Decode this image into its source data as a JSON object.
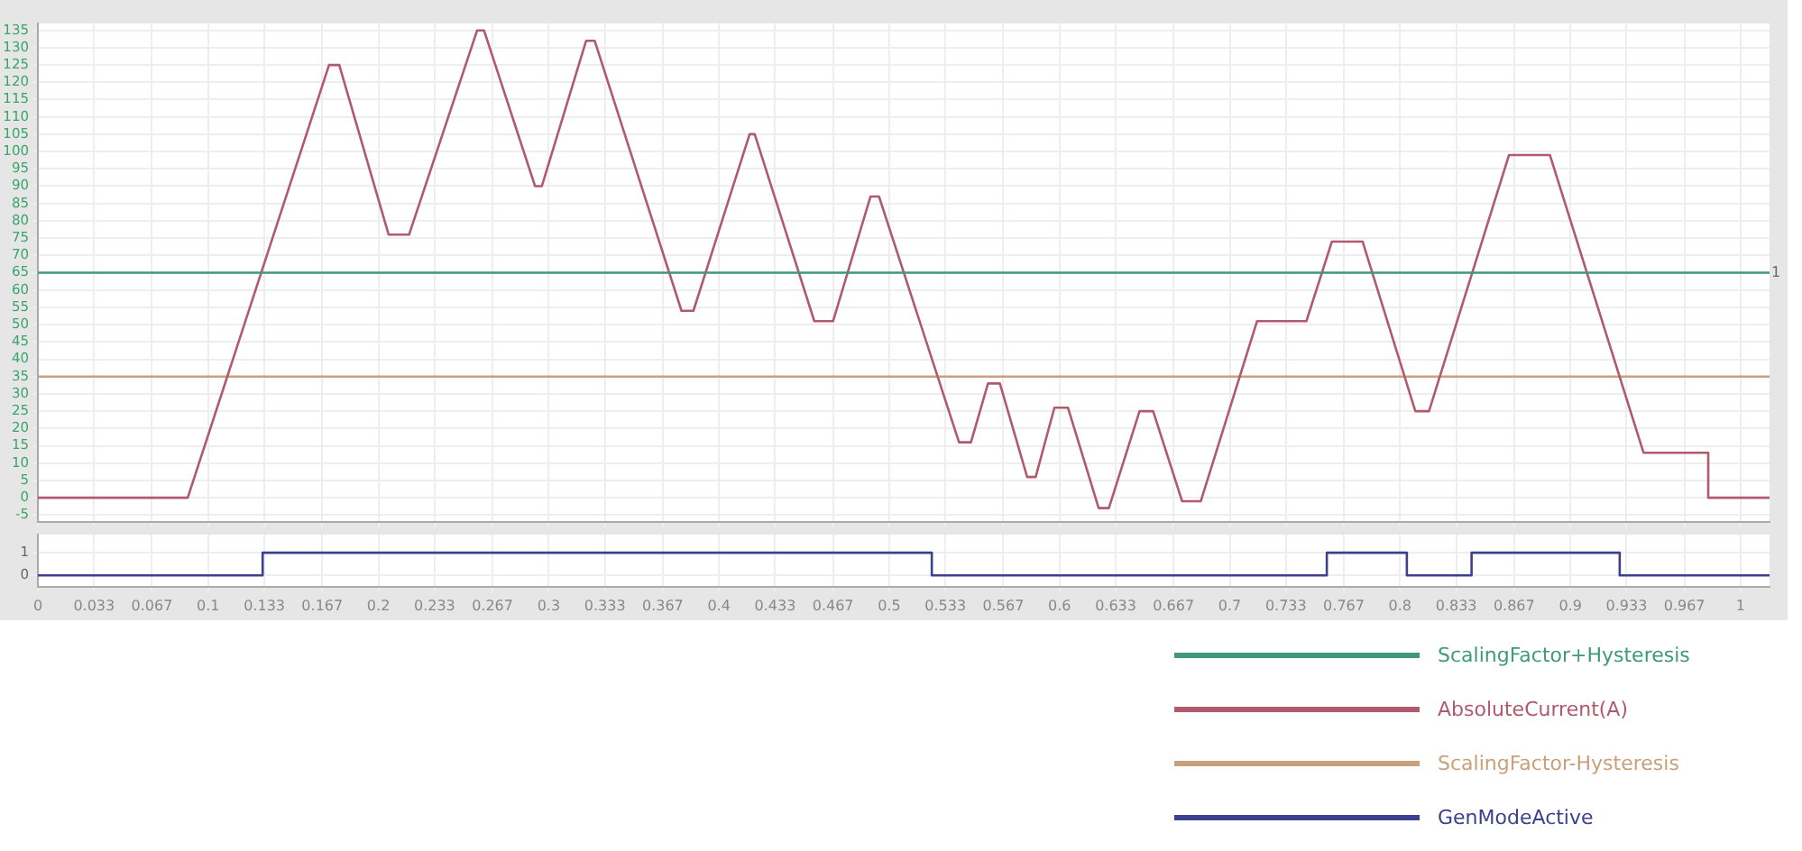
{
  "chart_data": [
    {
      "type": "line",
      "xlim": [
        0,
        1.017
      ],
      "ylim": [
        -7,
        137
      ],
      "xticks": [
        0,
        0.033,
        0.067,
        0.1,
        0.133,
        0.167,
        0.2,
        0.233,
        0.267,
        0.3,
        0.333,
        0.367,
        0.4,
        0.433,
        0.467,
        0.5,
        0.533,
        0.567,
        0.6,
        0.633,
        0.667,
        0.7,
        0.733,
        0.767,
        0.8,
        0.833,
        0.867,
        0.9,
        0.933,
        0.967,
        1
      ],
      "yticks": [
        -5,
        0,
        5,
        10,
        15,
        20,
        25,
        30,
        35,
        40,
        45,
        50,
        55,
        60,
        65,
        70,
        75,
        80,
        85,
        90,
        95,
        100,
        105,
        110,
        115,
        120,
        125,
        130,
        135
      ],
      "grid": true,
      "tick_labels": "y",
      "marker": "none",
      "legend": "bottom right",
      "annotations": [
        {
          "text": "1",
          "x": 1.017,
          "y": 65
        }
      ],
      "series": [
        {
          "name": "ScalingFactor+Hysteresis",
          "color": "#3f9a78",
          "x": [
            0,
            1.017
          ],
          "values": [
            65,
            65
          ]
        },
        {
          "name": "AbsoluteCurrent(A)",
          "color": "#b05a6e",
          "x": [
            0,
            0.088,
            0.171,
            0.177,
            0.206,
            0.218,
            0.258,
            0.262,
            0.292,
            0.296,
            0.322,
            0.327,
            0.378,
            0.385,
            0.418,
            0.421,
            0.456,
            0.467,
            0.489,
            0.494,
            0.541,
            0.548,
            0.558,
            0.565,
            0.581,
            0.586,
            0.597,
            0.605,
            0.623,
            0.629,
            0.647,
            0.655,
            0.672,
            0.683,
            0.716,
            0.745,
            0.76,
            0.778,
            0.809,
            0.817,
            0.864,
            0.888,
            0.943,
            0.981,
            0.981,
            1.017
          ],
          "values": [
            0,
            0,
            125,
            125,
            76,
            76,
            135,
            135,
            90,
            90,
            132,
            132,
            54,
            54,
            105,
            105,
            51,
            51,
            87,
            87,
            16,
            16,
            33,
            33,
            6,
            6,
            26,
            26,
            -3,
            -3,
            25,
            25,
            -1,
            -1,
            51,
            51,
            74,
            74,
            25,
            25,
            99,
            99,
            13,
            13,
            0,
            0
          ]
        },
        {
          "name": "ScalingFactor-Hysteresis",
          "color": "#c8a07a",
          "x": [
            0,
            1.017
          ],
          "values": [
            35,
            35
          ]
        }
      ]
    },
    {
      "type": "step",
      "xlim": [
        0,
        1.017
      ],
      "ylim": [
        -0.5,
        1.8
      ],
      "xticks": [
        0,
        0.033,
        0.067,
        0.1,
        0.133,
        0.167,
        0.2,
        0.233,
        0.267,
        0.3,
        0.333,
        0.367,
        0.4,
        0.433,
        0.467,
        0.5,
        0.533,
        0.567,
        0.6,
        0.633,
        0.667,
        0.7,
        0.733,
        0.767,
        0.8,
        0.833,
        0.867,
        0.9,
        0.933,
        0.967,
        1
      ],
      "yticks": [
        0,
        1
      ],
      "grid": true,
      "marker": "none",
      "legend": "bottom right",
      "series": [
        {
          "name": "GenModeActive",
          "color": "#3d3f8f",
          "x": [
            0,
            0.132,
            0.525,
            0.757,
            0.804,
            0.842,
            0.929,
            1.017
          ],
          "values": [
            0,
            1,
            0,
            1,
            0,
            1,
            0,
            0
          ]
        }
      ]
    }
  ]
}
